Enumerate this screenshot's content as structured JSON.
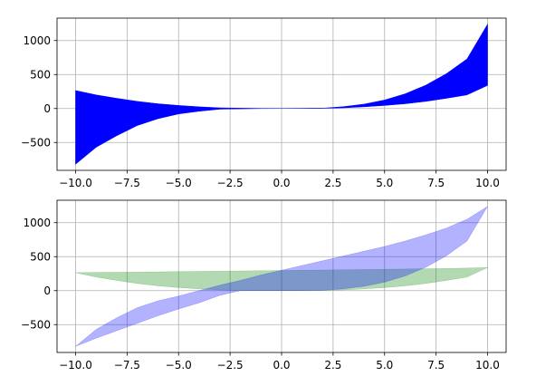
{
  "chart_data": [
    {
      "type": "area",
      "title": "",
      "xlabel": "",
      "ylabel": "",
      "xlim": [
        -10.9,
        10.9
      ],
      "ylim": [
        -910,
        1330
      ],
      "grid": true,
      "xticks": [
        -10.0,
        -7.5,
        -5.0,
        -2.5,
        0.0,
        2.5,
        5.0,
        7.5,
        10.0
      ],
      "xtick_labels": [
        "−10.0",
        "−7.5",
        "−5.0",
        "−2.5",
        "0.0",
        "2.5",
        "5.0",
        "7.5",
        "10.0"
      ],
      "yticks": [
        -500,
        0,
        500,
        1000
      ],
      "ytick_labels": [
        "−500",
        "0",
        "500",
        "1000"
      ],
      "x": [
        -10,
        -9,
        -8,
        -7,
        -6,
        -5,
        -4,
        -3,
        -2,
        -1,
        0,
        1,
        2,
        3,
        4,
        5,
        6,
        7,
        8,
        9,
        10
      ],
      "series": [
        {
          "color": "#0000ff",
          "alpha": 1.0,
          "y_upper": [
            265,
            200,
            150,
            105,
            70,
            45,
            25,
            10,
            5,
            1,
            0,
            1,
            5,
            27,
            64,
            125,
            216,
            343,
            512,
            729,
            1240
          ],
          "y_lower": [
            -820,
            -570,
            -400,
            -250,
            -150,
            -80,
            -40,
            -10,
            -5,
            -1,
            0,
            1,
            5,
            10,
            25,
            45,
            70,
            105,
            150,
            200,
            340
          ]
        }
      ]
    },
    {
      "type": "area",
      "title": "",
      "xlabel": "",
      "ylabel": "",
      "xlim": [
        -10.9,
        10.9
      ],
      "ylim": [
        -910,
        1330
      ],
      "grid": true,
      "xticks": [
        -10.0,
        -7.5,
        -5.0,
        -2.5,
        0.0,
        2.5,
        5.0,
        7.5,
        10.0
      ],
      "xtick_labels": [
        "−10.0",
        "−7.5",
        "−5.0",
        "−2.5",
        "0.0",
        "2.5",
        "5.0",
        "7.5",
        "10.0"
      ],
      "yticks": [
        -500,
        0,
        500,
        1000
      ],
      "ytick_labels": [
        "−500",
        "0",
        "500",
        "1000"
      ],
      "x": [
        -10,
        -9,
        -8,
        -7,
        -6,
        -5,
        -4,
        -3,
        -2,
        -1,
        0,
        1,
        2,
        3,
        4,
        5,
        6,
        7,
        8,
        9,
        10
      ],
      "series": [
        {
          "color": "#008000",
          "alpha": 0.3,
          "y_upper": [
            265,
            268,
            270,
            273,
            276,
            280,
            283,
            287,
            290,
            293,
            297,
            300,
            303,
            307,
            310,
            314,
            318,
            322,
            327,
            332,
            340
          ],
          "y_lower": [
            265,
            200,
            150,
            105,
            70,
            45,
            25,
            10,
            5,
            1,
            0,
            1,
            5,
            10,
            25,
            45,
            70,
            105,
            150,
            200,
            340
          ]
        },
        {
          "color": "#0000ff",
          "alpha": 0.3,
          "y_upper": [
            -820,
            -570,
            -400,
            -250,
            -150,
            -80,
            0,
            80,
            150,
            230,
            300,
            370,
            440,
            510,
            580,
            650,
            730,
            820,
            920,
            1050,
            1240
          ],
          "y_lower": [
            -820,
            -700,
            -590,
            -480,
            -370,
            -270,
            -180,
            -70,
            0,
            0,
            0,
            1,
            5,
            27,
            64,
            125,
            216,
            343,
            512,
            729,
            1240
          ]
        }
      ]
    }
  ]
}
